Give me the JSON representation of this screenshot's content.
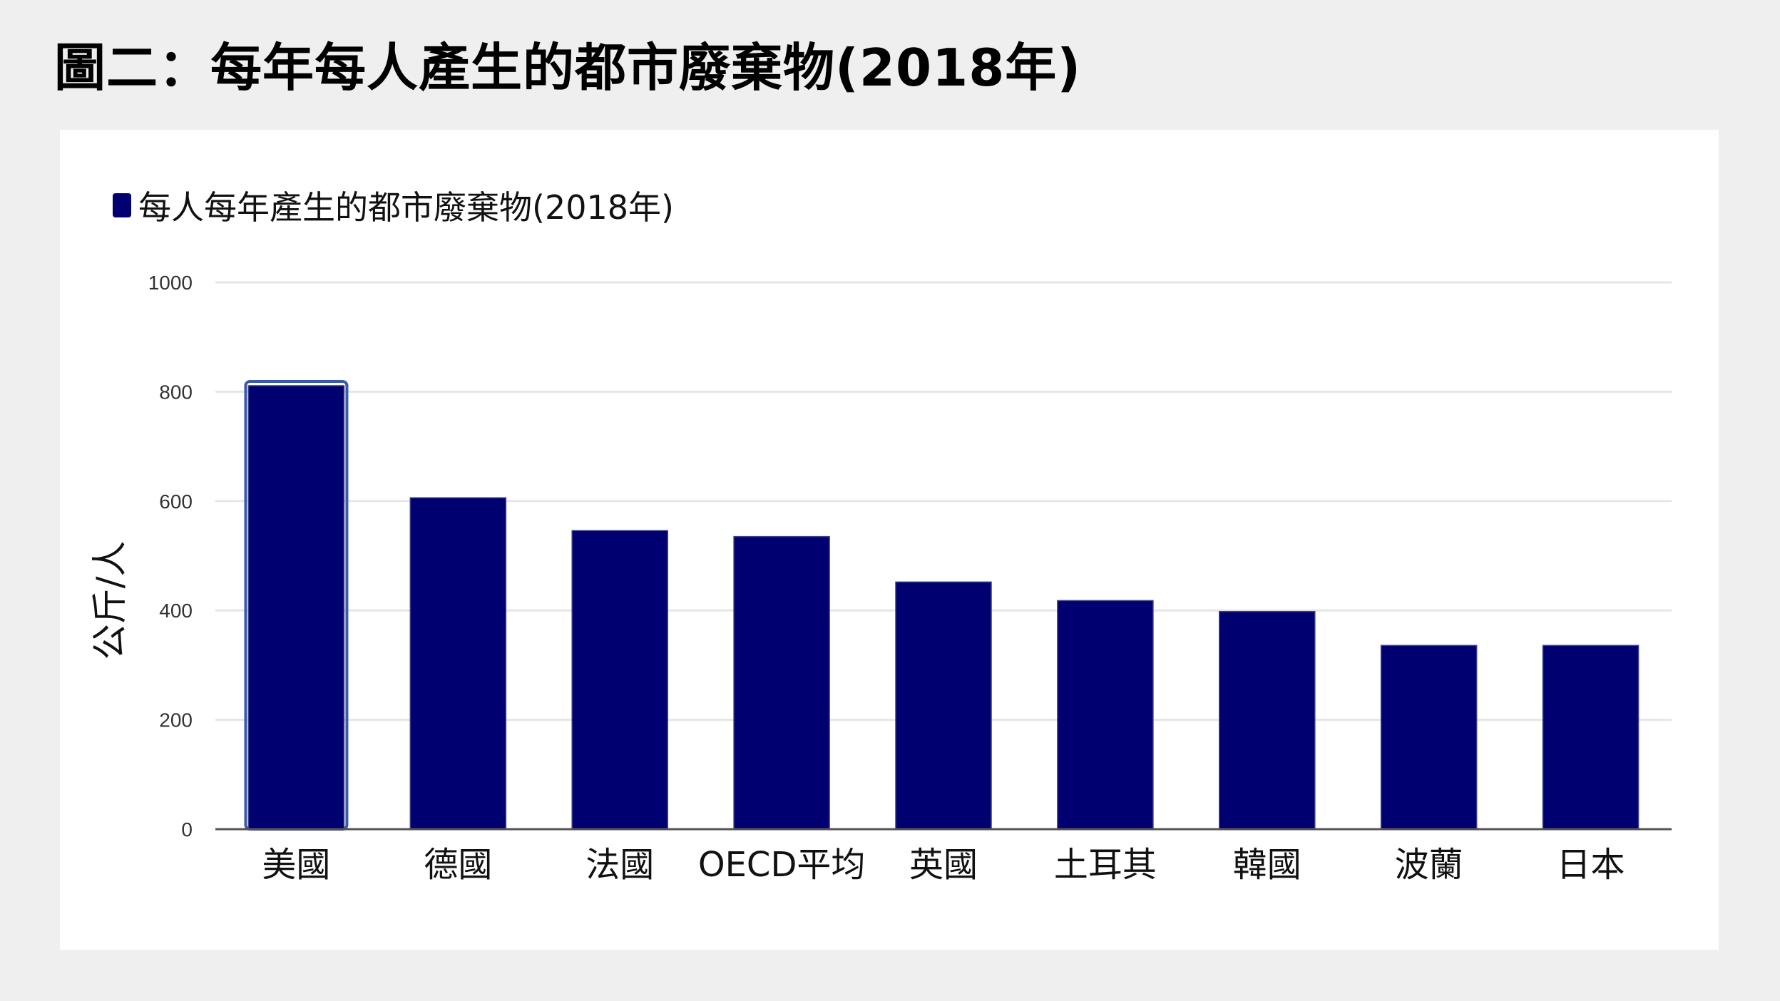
{
  "page_title": "圖二：每年每人產生的都市廢棄物(2018年)",
  "colors": {
    "bar": "#000070",
    "highlight_border": "#3b5aa8",
    "grid": "#e6e6e6",
    "axis": "#555555",
    "background": "#efefef",
    "card": "#ffffff"
  },
  "chart_data": {
    "type": "bar",
    "legend": "每人每年產生的都市廢棄物(2018年)",
    "legend_position": "top-left",
    "ylabel": "公斤/人",
    "xlabel": "",
    "ylim": [
      0,
      1000
    ],
    "yticks": [
      0,
      200,
      400,
      600,
      800,
      1000
    ],
    "grid": true,
    "categories": [
      "美國",
      "德國",
      "法國",
      "OECD平均",
      "英國",
      "土耳其",
      "韓國",
      "波蘭",
      "日本"
    ],
    "series": [
      {
        "name": "每人每年產生的都市廢棄物(2018年)",
        "values": [
          811,
          606,
          546,
          535,
          452,
          418,
          398,
          336,
          336
        ]
      }
    ],
    "highlighted_category": "美國"
  }
}
